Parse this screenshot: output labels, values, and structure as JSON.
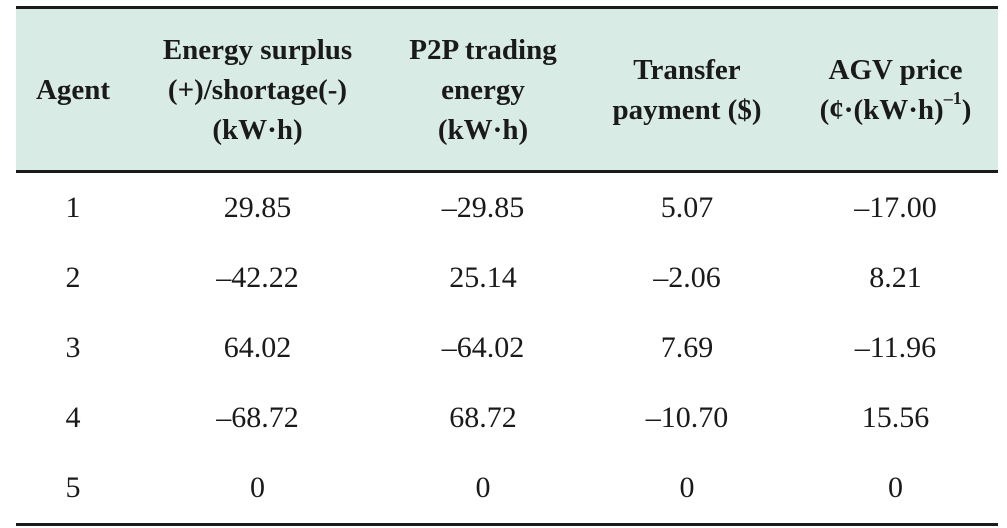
{
  "table": {
    "headers": [
      {
        "lines": [
          "Agent"
        ]
      },
      {
        "lines": [
          "Energy surplus",
          "(+)/shortage(-)",
          "(kW·h)"
        ]
      },
      {
        "lines": [
          "P2P trading",
          "energy",
          "(kW·h)"
        ]
      },
      {
        "lines": [
          "Transfer",
          "payment ($)"
        ]
      },
      {
        "lines": [
          "AGV price",
          "(¢·(kW·h)",
          "–1",
          ")"
        ]
      }
    ],
    "rows": [
      [
        "1",
        "29.85",
        "–29.85",
        "5.07",
        "–17.00"
      ],
      [
        "2",
        "–42.22",
        "25.14",
        "–2.06",
        "8.21"
      ],
      [
        "3",
        "64.02",
        "–64.02",
        "7.69",
        "–11.96"
      ],
      [
        "4",
        "–68.72",
        "68.72",
        "–10.70",
        "15.56"
      ],
      [
        "5",
        "0",
        "0",
        "0",
        "0"
      ]
    ],
    "header_bg": "#d9ebe5",
    "rule_color": "#1a1a1a"
  }
}
